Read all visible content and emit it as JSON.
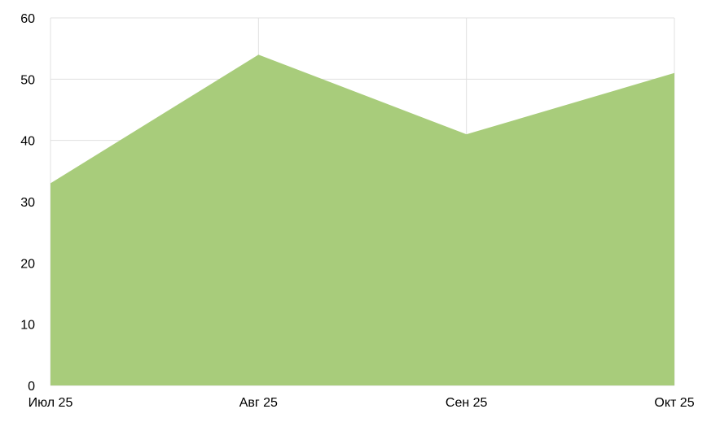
{
  "chart_data": {
    "type": "area",
    "categories": [
      "Июл 25",
      "Авг 25",
      "Сен 25",
      "Окт 25"
    ],
    "series": [
      {
        "values": [
          33,
          54,
          41,
          51
        ]
      }
    ],
    "title": "",
    "xlabel": "",
    "ylabel": "",
    "ylim": [
      0,
      60
    ],
    "yticks": [
      "0",
      "10",
      "20",
      "30",
      "40",
      "50",
      "60"
    ],
    "grid": true,
    "legend": "none",
    "colors": {
      "area": "#a6cb78",
      "grid": "#e0e0e0",
      "axis": "#e0e0e0"
    }
  }
}
